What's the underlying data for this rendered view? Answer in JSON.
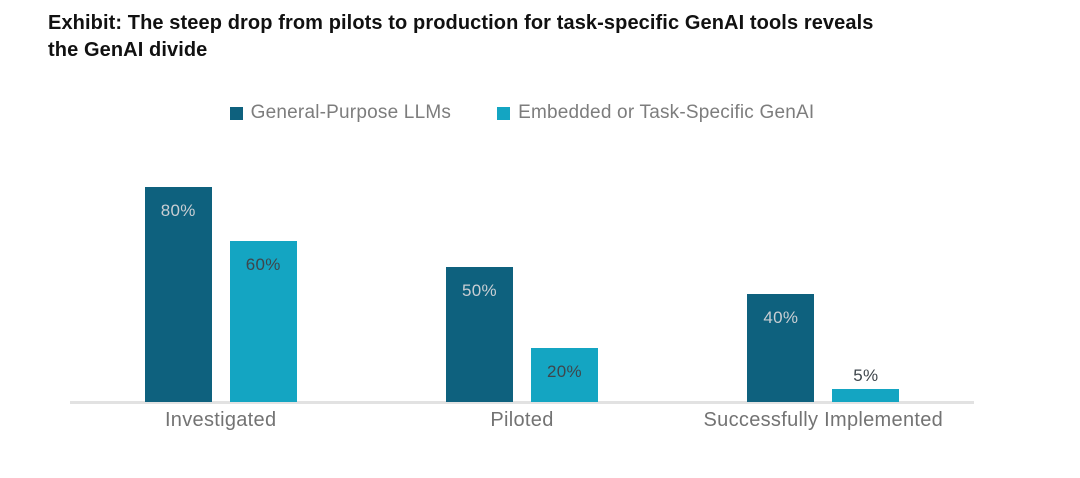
{
  "title": {
    "line1": "Exhibit: The steep drop from pilots to production for task-specific GenAI tools reveals",
    "line2": "the GenAI divide"
  },
  "colors": {
    "series_dark": "#0e617e",
    "series_cyan": "#14a5c2",
    "value_label_on_dark": "#c9ced3",
    "value_label_on_cyan": "#3e464c",
    "value_label_above": "#3e464c",
    "axis_line": "#e2e2e2",
    "category_text": "#737373",
    "legend_text": "#7d7d7d",
    "title_text": "#111111"
  },
  "chart_data": {
    "type": "bar",
    "title": "Exhibit: The steep drop from pilots to production for task-specific GenAI tools reveals the GenAI divide",
    "categories": [
      "Investigated",
      "Piloted",
      "Successfully Implemented"
    ],
    "series": [
      {
        "name": "General-Purpose LLMs",
        "color": "#0e617e",
        "values": [
          80,
          50,
          40
        ]
      },
      {
        "name": "Embedded or Task-Specific GenAI",
        "color": "#14a5c2",
        "values": [
          60,
          20,
          5
        ]
      }
    ],
    "data_labels": [
      [
        "80%",
        "50%",
        "40%"
      ],
      [
        "60%",
        "20%",
        "5%"
      ]
    ],
    "value_suffix": "%",
    "ylim": [
      0,
      100
    ],
    "grid": false,
    "y_axis_visible": false,
    "legend_position": "top-center"
  }
}
